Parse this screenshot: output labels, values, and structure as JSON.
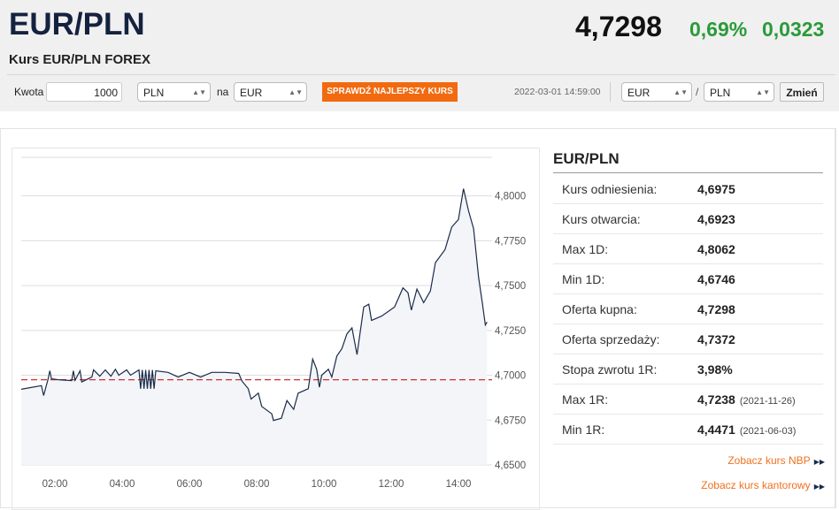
{
  "header": {
    "title": "EUR/PLN",
    "price": "4,7298",
    "change_pct": "0,69%",
    "change_abs": "0,0323",
    "subtitle": "Kurs EUR/PLN FOREX",
    "change_color": "#2a9a3a"
  },
  "converter": {
    "amount_label": "Kwota",
    "amount_value": "1000",
    "from": "PLN",
    "na_label": "na",
    "to": "EUR",
    "check_button": "SPRAWDŹ NAJLEPSZY KURS",
    "timestamp": "2022-03-01 14:59:00",
    "pair_base": "EUR",
    "slash": "/",
    "pair_quote": "PLN",
    "change_button": "Zmień"
  },
  "info": {
    "title": "EUR/PLN",
    "rows": [
      {
        "label": "Kurs odniesienia:",
        "value": "4,6975"
      },
      {
        "label": "Kurs otwarcia:",
        "value": "4,6923"
      },
      {
        "label": "Max 1D:",
        "value": "4,8062"
      },
      {
        "label": "Min 1D:",
        "value": "4,6746"
      },
      {
        "label": "Oferta kupna:",
        "value": "4,7298"
      },
      {
        "label": "Oferta sprzedaży:",
        "value": "4,7372"
      },
      {
        "label": "Stopa zwrotu 1R:",
        "value": "3,98%"
      },
      {
        "label": "Max 1R:",
        "value": "4,7238",
        "date": "(2021-11-26)"
      },
      {
        "label": "Min 1R:",
        "value": "4,4471",
        "date": "(2021-06-03)"
      }
    ],
    "link_nbp": "Zobacz kurs NBP",
    "link_kantor": "Zobacz kurs kantorowy"
  },
  "chart_data": {
    "type": "line",
    "xlim": [
      "01:00",
      "15:00"
    ],
    "ylim": [
      4.65,
      4.8215
    ],
    "xticks": [
      "02:00",
      "04:00",
      "06:00",
      "08:00",
      "10:00",
      "12:00",
      "14:00"
    ],
    "yticks": [
      "4,6500",
      "4,6750",
      "4,7000",
      "4,7250",
      "4,7500",
      "4,7750",
      "4,8000"
    ],
    "reference_line": 4.6975,
    "line_color": "#1a2b4a",
    "reference_color": "#d03030",
    "grid": true,
    "points": [
      [
        "01:00",
        4.6922
      ],
      [
        "01:36",
        4.6942
      ],
      [
        "01:40",
        4.6887
      ],
      [
        "01:48",
        4.698
      ],
      [
        "01:51",
        4.7025
      ],
      [
        "01:54",
        4.698
      ],
      [
        "02:06",
        4.6975
      ],
      [
        "02:30",
        4.697
      ],
      [
        "02:33",
        4.7025
      ],
      [
        "02:36",
        4.6972
      ],
      [
        "02:45",
        4.7025
      ],
      [
        "02:48",
        4.6963
      ],
      [
        "03:06",
        4.699
      ],
      [
        "03:09",
        4.703
      ],
      [
        "03:20",
        4.6995
      ],
      [
        "03:30",
        4.703
      ],
      [
        "03:40",
        4.6995
      ],
      [
        "03:48",
        4.7033
      ],
      [
        "03:54",
        4.7
      ],
      [
        "04:08",
        4.703
      ],
      [
        "04:15",
        4.7
      ],
      [
        "04:30",
        4.703
      ],
      [
        "04:33",
        4.6925
      ],
      [
        "04:36",
        4.703
      ],
      [
        "04:39",
        4.6925
      ],
      [
        "04:42",
        4.703
      ],
      [
        "04:45",
        4.6925
      ],
      [
        "04:48",
        4.703
      ],
      [
        "04:51",
        4.6925
      ],
      [
        "04:54",
        4.703
      ],
      [
        "04:57",
        4.6925
      ],
      [
        "05:00",
        4.7025
      ],
      [
        "05:22",
        4.7016
      ],
      [
        "05:40",
        4.699
      ],
      [
        "06:00",
        4.7016
      ],
      [
        "06:20",
        4.699
      ],
      [
        "06:40",
        4.7016
      ],
      [
        "07:04",
        4.7016
      ],
      [
        "07:28",
        4.701
      ],
      [
        "07:34",
        4.6967
      ],
      [
        "07:45",
        4.6925
      ],
      [
        "07:50",
        4.6867
      ],
      [
        "08:03",
        4.69
      ],
      [
        "08:09",
        4.6826
      ],
      [
        "08:27",
        4.6785
      ],
      [
        "08:30",
        4.6748
      ],
      [
        "08:44",
        4.676
      ],
      [
        "08:54",
        4.6859
      ],
      [
        "09:06",
        4.681
      ],
      [
        "09:14",
        4.69
      ],
      [
        "09:32",
        4.6925
      ],
      [
        "09:40",
        4.709
      ],
      [
        "09:47",
        4.7033
      ],
      [
        "09:52",
        4.6933
      ],
      [
        "09:56",
        4.7
      ],
      [
        "10:08",
        4.7033
      ],
      [
        "10:14",
        4.699
      ],
      [
        "10:23",
        4.7107
      ],
      [
        "10:32",
        4.7148
      ],
      [
        "10:41",
        4.7231
      ],
      [
        "10:50",
        4.7264
      ],
      [
        "10:59",
        4.7115
      ],
      [
        "11:11",
        4.738
      ],
      [
        "11:20",
        4.7396
      ],
      [
        "11:25",
        4.7306
      ],
      [
        "11:43",
        4.733
      ],
      [
        "12:06",
        4.738
      ],
      [
        "12:21",
        4.7487
      ],
      [
        "12:30",
        4.746
      ],
      [
        "12:36",
        4.7363
      ],
      [
        "12:46",
        4.748
      ],
      [
        "12:58",
        4.7405
      ],
      [
        "13:10",
        4.747
      ],
      [
        "13:19",
        4.7628
      ],
      [
        "13:36",
        4.77
      ],
      [
        "13:48",
        4.7826
      ],
      [
        "14:00",
        4.7868
      ],
      [
        "14:09",
        4.804
      ],
      [
        "14:18",
        4.7917
      ],
      [
        "14:27",
        4.7818
      ],
      [
        "14:36",
        4.7545
      ],
      [
        "14:43",
        4.7396
      ],
      [
        "14:48",
        4.728
      ],
      [
        "14:51",
        4.7297
      ]
    ]
  }
}
